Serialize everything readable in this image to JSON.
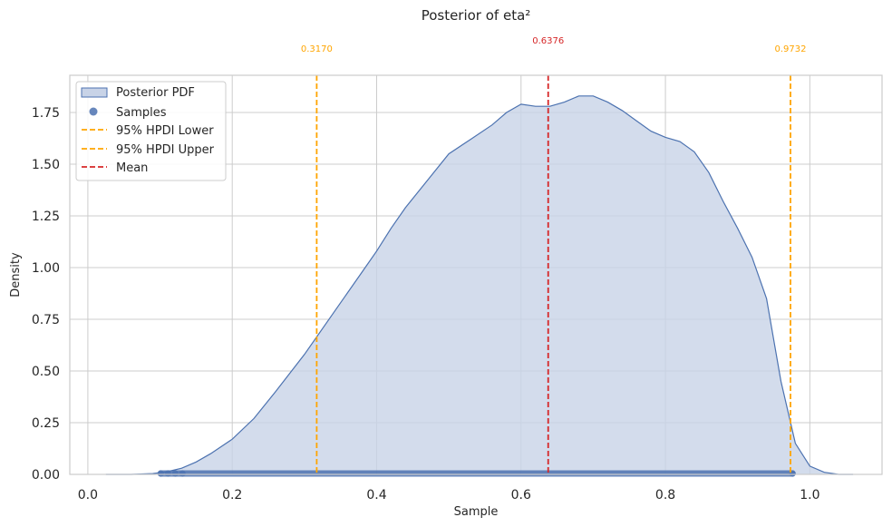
{
  "chart_data": {
    "type": "area",
    "title": "Posterior of eta²",
    "xlabel": "Sample",
    "ylabel": "Density",
    "xlim": [
      -0.025,
      1.1
    ],
    "ylim": [
      0,
      1.93
    ],
    "xticks": [
      "0.0",
      "0.2",
      "0.4",
      "0.6",
      "0.8",
      "1.0"
    ],
    "xtick_values": [
      0.0,
      0.2,
      0.4,
      0.6,
      0.8,
      1.0
    ],
    "yticks": [
      "0.00",
      "0.25",
      "0.50",
      "0.75",
      "1.00",
      "1.25",
      "1.50",
      "1.75"
    ],
    "ytick_values": [
      0.0,
      0.25,
      0.5,
      0.75,
      1.0,
      1.25,
      1.5,
      1.75
    ],
    "grid": true,
    "legend_position": "top-left",
    "series": [
      {
        "name": "Posterior PDF",
        "kind": "kde-area",
        "color": "#4c72b0",
        "fill": "#c8d3e7",
        "x": [
          0.025,
          0.06,
          0.09,
          0.11,
          0.13,
          0.15,
          0.17,
          0.2,
          0.23,
          0.26,
          0.3,
          0.34,
          0.38,
          0.4,
          0.42,
          0.44,
          0.47,
          0.5,
          0.53,
          0.56,
          0.58,
          0.6,
          0.62,
          0.64,
          0.66,
          0.68,
          0.7,
          0.72,
          0.74,
          0.76,
          0.78,
          0.8,
          0.82,
          0.84,
          0.86,
          0.88,
          0.9,
          0.92,
          0.94,
          0.96,
          0.98,
          1.0,
          1.02,
          1.04,
          1.06
        ],
        "y": [
          0.0,
          0.0,
          0.004,
          0.013,
          0.03,
          0.06,
          0.1,
          0.17,
          0.27,
          0.4,
          0.58,
          0.78,
          0.98,
          1.08,
          1.19,
          1.29,
          1.42,
          1.55,
          1.62,
          1.69,
          1.75,
          1.79,
          1.78,
          1.78,
          1.8,
          1.83,
          1.83,
          1.8,
          1.76,
          1.71,
          1.66,
          1.63,
          1.61,
          1.56,
          1.46,
          1.32,
          1.19,
          1.05,
          0.85,
          0.45,
          0.15,
          0.04,
          0.01,
          0.0,
          0.0
        ]
      },
      {
        "name": "Samples",
        "kind": "rug-points",
        "color": "#4c72b0",
        "x_min": 0.101,
        "x_max": 0.976,
        "y": 0
      }
    ],
    "vlines": [
      {
        "name": "95% HPDI Lower",
        "x": 0.317,
        "label": "0.3170",
        "color": "#ffa500"
      },
      {
        "name": "95% HPDI Upper",
        "x": 0.9732,
        "label": "0.9732",
        "color": "#ffa500"
      },
      {
        "name": "Mean",
        "x": 0.6376,
        "label": "0.6376",
        "color": "#d62728"
      }
    ]
  },
  "legend": {
    "items": [
      {
        "label": "Posterior PDF"
      },
      {
        "label": "Samples"
      },
      {
        "label": "95% HPDI Lower"
      },
      {
        "label": "95% HPDI Upper"
      },
      {
        "label": "Mean"
      }
    ]
  }
}
